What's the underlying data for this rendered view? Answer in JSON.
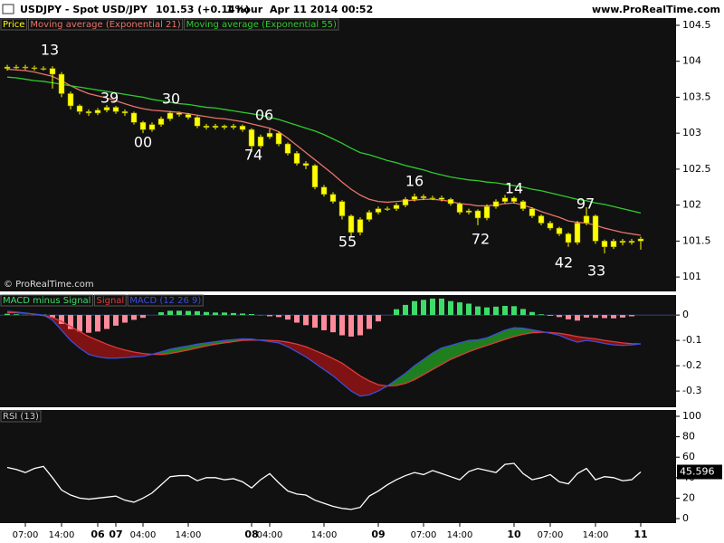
{
  "header": {
    "symbol": "USDJPY - Spot USD/JPY",
    "last": "101.53 (+0.14%)",
    "period": "1 hour",
    "timestamp": "Apr 11 2014 00:52",
    "site": "www.ProRealTime.com"
  },
  "watermark": "© ProRealTime.com",
  "chart_data": [
    {
      "type": "candlestick",
      "name": "Price",
      "color": "#ffff00",
      "open": [
        103.9,
        103.92,
        103.92,
        103.91,
        103.9,
        103.9,
        103.82,
        103.55,
        103.38,
        103.3,
        103.28,
        103.32,
        103.36,
        103.3,
        103.28,
        103.15,
        103.05,
        103.12,
        103.2,
        103.28,
        103.26,
        103.22,
        103.1,
        103.08,
        103.1,
        103.08,
        103.1,
        103.05,
        102.82,
        102.95,
        103.0,
        102.85,
        102.72,
        102.58,
        102.55,
        102.25,
        102.15,
        102.05,
        101.85,
        101.62,
        101.8,
        101.9,
        101.95,
        101.95,
        102.0,
        102.08,
        102.12,
        102.1,
        102.1,
        102.08,
        102.02,
        101.9,
        101.92,
        101.82,
        101.98,
        102.05,
        102.1,
        102.05,
        101.95,
        101.85,
        101.75,
        101.68,
        101.6,
        101.48,
        101.75,
        101.85,
        101.5,
        101.42,
        101.5,
        101.48,
        101.5
      ],
      "high": [
        103.95,
        103.95,
        103.95,
        103.94,
        103.93,
        103.93,
        103.85,
        103.58,
        103.4,
        103.33,
        103.35,
        103.39,
        103.38,
        103.33,
        103.3,
        103.17,
        103.15,
        103.23,
        103.3,
        103.3,
        103.28,
        103.24,
        103.13,
        103.13,
        103.12,
        103.13,
        103.12,
        103.07,
        102.98,
        103.06,
        103.02,
        102.87,
        102.75,
        102.61,
        102.57,
        102.28,
        102.18,
        102.07,
        101.87,
        101.83,
        101.93,
        101.98,
        101.98,
        102.03,
        102.11,
        102.16,
        102.15,
        102.13,
        102.13,
        102.1,
        102.04,
        101.95,
        101.94,
        102.01,
        102.08,
        102.14,
        102.12,
        102.07,
        101.97,
        101.87,
        101.78,
        101.7,
        101.62,
        101.78,
        101.97,
        101.87,
        101.52,
        101.53,
        101.53,
        101.53,
        101.56
      ],
      "low": [
        103.87,
        103.89,
        103.88,
        103.87,
        103.87,
        103.62,
        103.5,
        103.33,
        103.26,
        103.24,
        103.25,
        103.29,
        103.27,
        103.24,
        103.12,
        103.0,
        103.02,
        103.09,
        103.17,
        103.23,
        103.19,
        103.07,
        103.05,
        103.05,
        103.05,
        103.05,
        103.02,
        102.74,
        102.79,
        102.92,
        102.82,
        102.69,
        102.55,
        102.5,
        102.22,
        102.12,
        102.02,
        101.8,
        101.55,
        101.58,
        101.77,
        101.87,
        101.92,
        101.92,
        101.97,
        102.05,
        102.07,
        102.07,
        102.05,
        101.99,
        101.87,
        101.87,
        101.72,
        101.79,
        101.95,
        102.02,
        102.02,
        101.92,
        101.82,
        101.72,
        101.65,
        101.57,
        101.42,
        101.45,
        101.72,
        101.46,
        101.33,
        101.39,
        101.44,
        101.45,
        101.38
      ],
      "close": [
        103.92,
        103.92,
        103.91,
        103.9,
        103.9,
        103.82,
        103.55,
        103.38,
        103.3,
        103.28,
        103.32,
        103.36,
        103.3,
        103.28,
        103.15,
        103.05,
        103.12,
        103.2,
        103.28,
        103.26,
        103.22,
        103.1,
        103.08,
        103.1,
        103.08,
        103.1,
        103.05,
        102.82,
        102.95,
        103.0,
        102.85,
        102.72,
        102.58,
        102.55,
        102.25,
        102.15,
        102.05,
        101.85,
        101.62,
        101.8,
        101.9,
        101.95,
        101.95,
        102.0,
        102.08,
        102.12,
        102.1,
        102.1,
        102.08,
        102.02,
        101.9,
        101.92,
        101.82,
        101.98,
        102.05,
        102.1,
        102.05,
        101.95,
        101.85,
        101.75,
        101.68,
        101.6,
        101.48,
        101.75,
        101.85,
        101.5,
        101.42,
        101.5,
        101.48,
        101.5,
        101.53
      ],
      "series": [
        {
          "name": "Moving average (Exponential 21)",
          "color": "#e8736b",
          "values": [
            103.89,
            103.88,
            103.87,
            103.85,
            103.82,
            103.79,
            103.73,
            103.66,
            103.6,
            103.55,
            103.52,
            103.49,
            103.45,
            103.41,
            103.37,
            103.34,
            103.32,
            103.31,
            103.3,
            103.29,
            103.27,
            103.25,
            103.23,
            103.21,
            103.2,
            103.18,
            103.16,
            103.13,
            103.1,
            103.07,
            103.02,
            102.93,
            102.83,
            102.73,
            102.63,
            102.53,
            102.43,
            102.32,
            102.22,
            102.14,
            102.08,
            102.05,
            102.04,
            102.05,
            102.06,
            102.07,
            102.08,
            102.08,
            102.07,
            102.05,
            102.02,
            102.01,
            101.99,
            101.99,
            102.0,
            102.02,
            102.03,
            102.0,
            101.96,
            101.91,
            101.87,
            101.83,
            101.78,
            101.76,
            101.75,
            101.72,
            101.68,
            101.65,
            101.62,
            101.6,
            101.58
          ]
        },
        {
          "name": "Moving average (Exponential 55)",
          "color": "#2ecc2e",
          "values": [
            103.78,
            103.77,
            103.75,
            103.73,
            103.72,
            103.7,
            103.68,
            103.66,
            103.64,
            103.62,
            103.6,
            103.58,
            103.56,
            103.54,
            103.52,
            103.5,
            103.47,
            103.45,
            103.43,
            103.41,
            103.4,
            103.38,
            103.36,
            103.35,
            103.33,
            103.31,
            103.29,
            103.27,
            103.25,
            103.22,
            103.19,
            103.15,
            103.11,
            103.07,
            103.03,
            102.98,
            102.92,
            102.86,
            102.79,
            102.73,
            102.7,
            102.66,
            102.62,
            102.59,
            102.55,
            102.52,
            102.49,
            102.45,
            102.42,
            102.39,
            102.37,
            102.35,
            102.34,
            102.32,
            102.31,
            102.29,
            102.27,
            102.25,
            102.22,
            102.2,
            102.17,
            102.14,
            102.11,
            102.08,
            102.06,
            102.03,
            102.01,
            101.98,
            101.95,
            101.92,
            101.89
          ]
        }
      ],
      "annotations": [
        "13",
        "39",
        "30",
        "06",
        "74",
        "00",
        "55",
        "16",
        "72",
        "14",
        "42",
        "97",
        "33"
      ],
      "ylim": [
        100.8,
        104.6
      ],
      "yticks": [
        101,
        101.5,
        102,
        102.5,
        103,
        103.5,
        104,
        104.5
      ]
    },
    {
      "type": "macd",
      "fill_up": "#1f7f1f",
      "fill_down": "#7f1212",
      "series": [
        {
          "name": "MACD minus Signal",
          "color": "#3fdc6a",
          "negative_color": "#ff8a9a",
          "values": [
            0.005,
            0.003,
            0.001,
            0.001,
            0.002,
            -0.01,
            -0.035,
            -0.055,
            -0.065,
            -0.07,
            -0.065,
            -0.055,
            -0.042,
            -0.03,
            -0.019,
            -0.011,
            0.0,
            0.011,
            0.017,
            0.017,
            0.016,
            0.015,
            0.012,
            0.01,
            0.01,
            0.008,
            0.006,
            0.004,
            -0.001,
            -0.005,
            -0.008,
            -0.018,
            -0.03,
            -0.04,
            -0.05,
            -0.06,
            -0.068,
            -0.08,
            -0.085,
            -0.08,
            -0.055,
            -0.025,
            0.0,
            0.023,
            0.04,
            0.055,
            0.06,
            0.065,
            0.065,
            0.055,
            0.05,
            0.045,
            0.034,
            0.03,
            0.033,
            0.036,
            0.035,
            0.024,
            0.012,
            0.003,
            -0.003,
            -0.008,
            -0.017,
            -0.022,
            -0.01,
            -0.011,
            -0.012,
            -0.013,
            -0.01,
            -0.005,
            0.0
          ]
        },
        {
          "name": "Signal",
          "color": "#e03a3a",
          "values": [
            0.01,
            0.009,
            0.007,
            0.003,
            -0.002,
            -0.01,
            -0.025,
            -0.045,
            -0.065,
            -0.085,
            -0.1,
            -0.115,
            -0.128,
            -0.138,
            -0.146,
            -0.152,
            -0.155,
            -0.156,
            -0.152,
            -0.145,
            -0.138,
            -0.13,
            -0.122,
            -0.115,
            -0.11,
            -0.105,
            -0.1,
            -0.099,
            -0.099,
            -0.1,
            -0.102,
            -0.107,
            -0.115,
            -0.125,
            -0.14,
            -0.155,
            -0.172,
            -0.19,
            -0.215,
            -0.24,
            -0.26,
            -0.275,
            -0.28,
            -0.278,
            -0.27,
            -0.255,
            -0.235,
            -0.215,
            -0.195,
            -0.175,
            -0.16,
            -0.145,
            -0.132,
            -0.12,
            -0.108,
            -0.096,
            -0.085,
            -0.076,
            -0.07,
            -0.068,
            -0.069,
            -0.072,
            -0.078,
            -0.085,
            -0.09,
            -0.094,
            -0.1,
            -0.105,
            -0.11,
            -0.113,
            -0.114
          ]
        },
        {
          "name": "MACD (12 26 9)",
          "color": "#3a4fd8",
          "values": [
            0.015,
            0.012,
            0.008,
            0.004,
            0.0,
            -0.02,
            -0.06,
            -0.1,
            -0.13,
            -0.155,
            -0.165,
            -0.17,
            -0.17,
            -0.168,
            -0.165,
            -0.163,
            -0.155,
            -0.145,
            -0.135,
            -0.128,
            -0.122,
            -0.115,
            -0.11,
            -0.105,
            -0.1,
            -0.097,
            -0.094,
            -0.095,
            -0.1,
            -0.105,
            -0.11,
            -0.125,
            -0.145,
            -0.165,
            -0.19,
            -0.215,
            -0.24,
            -0.27,
            -0.3,
            -0.32,
            -0.315,
            -0.3,
            -0.28,
            -0.255,
            -0.23,
            -0.2,
            -0.175,
            -0.15,
            -0.13,
            -0.12,
            -0.11,
            -0.1,
            -0.098,
            -0.09,
            -0.075,
            -0.06,
            -0.05,
            -0.052,
            -0.058,
            -0.065,
            -0.072,
            -0.08,
            -0.095,
            -0.107,
            -0.1,
            -0.105,
            -0.112,
            -0.118,
            -0.12,
            -0.118,
            -0.114
          ]
        }
      ],
      "ylim": [
        -0.364,
        0.079
      ],
      "yticks": [
        0,
        -0.1,
        -0.2,
        -0.3
      ]
    },
    {
      "type": "line",
      "series": [
        {
          "name": "RSI (13)",
          "color": "#ffffff",
          "values": [
            50,
            48,
            45,
            49,
            51,
            40,
            28,
            23,
            20,
            19,
            20,
            21,
            22,
            18,
            16,
            20,
            25,
            33,
            41,
            42,
            42,
            37,
            40,
            40,
            38,
            39,
            36,
            30,
            38,
            44,
            35,
            27,
            24,
            23,
            18,
            15,
            12,
            10,
            9,
            11,
            22,
            27,
            33,
            38,
            42,
            45,
            43,
            47,
            44,
            41,
            38,
            46,
            49,
            47,
            45,
            53,
            54,
            44,
            38,
            40,
            43,
            36,
            34,
            44,
            49,
            38,
            41,
            40,
            37,
            38,
            45.596
          ]
        }
      ],
      "categories": [
        null,
        null,
        "07:00",
        null,
        null,
        null,
        "14:00",
        null,
        null,
        null,
        "06",
        null,
        "07",
        null,
        null,
        "04:00",
        null,
        null,
        null,
        null,
        "14:00",
        null,
        null,
        null,
        null,
        null,
        null,
        "08",
        null,
        "04:00",
        null,
        null,
        null,
        null,
        null,
        "14:00",
        null,
        null,
        null,
        null,
        null,
        "09",
        null,
        null,
        null,
        null,
        "07:00",
        null,
        null,
        null,
        "14:00",
        null,
        null,
        null,
        null,
        null,
        "10",
        null,
        null,
        null,
        "07:00",
        null,
        null,
        null,
        null,
        "14:00",
        null,
        null,
        null,
        null,
        "11"
      ],
      "ylim": [
        -4.4,
        106.2
      ],
      "yticks": [
        0,
        20,
        40,
        60,
        80,
        100
      ]
    }
  ]
}
